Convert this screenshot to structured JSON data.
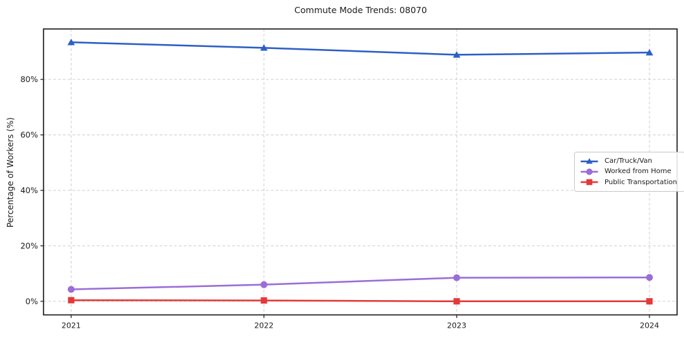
{
  "page": {
    "background": "#ffffff"
  },
  "chart_data": {
    "type": "line",
    "title": "Commute Mode Trends: 08070",
    "xlabel": "",
    "ylabel": "Percentage of Workers (%)",
    "x": [
      2021,
      2022,
      2023,
      2024
    ],
    "x_tick_labels": [
      "2021",
      "2022",
      "2023",
      "2024"
    ],
    "series": [
      {
        "name": "Car/Truck/Van",
        "color": "#2d5fc5",
        "marker": "triangle",
        "values": [
          93.4,
          91.4,
          88.9,
          89.7
        ]
      },
      {
        "name": "Worked from Home",
        "color": "#9a6dd7",
        "marker": "circle",
        "values": [
          4.3,
          6.0,
          8.5,
          8.6
        ]
      },
      {
        "name": "Public Transportation",
        "color": "#e23a3a",
        "marker": "square",
        "values": [
          0.4,
          0.3,
          0.0,
          0.0
        ]
      }
    ],
    "yticks": [
      0,
      20,
      40,
      60,
      80
    ],
    "ytick_labels": [
      "0%",
      "20%",
      "40%",
      "60%",
      "80%"
    ],
    "ylim": [
      -4.9,
      98.2
    ],
    "grid": true,
    "grid_style": "dashed",
    "legend_position": "center right"
  },
  "style": {
    "grid_color": "#cfcfcf",
    "spine_color": "#1c1c1c",
    "tick_label_color": "#1a1a1a",
    "line_width": 2.5
  }
}
